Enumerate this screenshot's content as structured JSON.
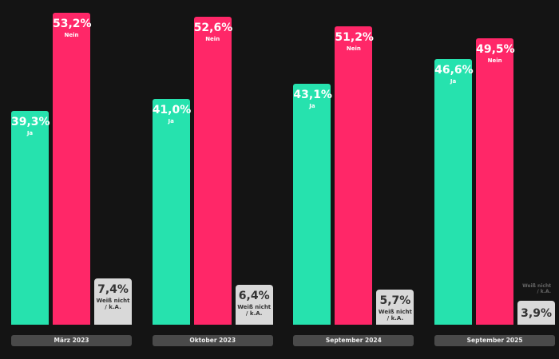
{
  "chart_data": {
    "type": "bar",
    "title": "",
    "categories": [
      "März 2023",
      "Oktober 2023",
      "September 2024",
      "September 2025"
    ],
    "series": [
      {
        "name": "Ja",
        "color": "#26e2ae",
        "values": [
          39.3,
          41.0,
          43.1,
          46.6
        ],
        "labels": [
          "39,3%",
          "41,0%",
          "43,1%",
          "46,6%"
        ]
      },
      {
        "name": "Nein",
        "color": "#ff2768",
        "values": [
          53.2,
          52.6,
          51.2,
          49.5
        ],
        "labels": [
          "53,2%",
          "52,6%",
          "51,2%",
          "49,5%"
        ]
      },
      {
        "name": "Weiß nicht / k.A.",
        "name_lines": [
          "Weiß nicht",
          "/ k.A."
        ],
        "color": "#d9d9d9",
        "values": [
          7.4,
          6.4,
          5.7,
          3.9
        ],
        "labels": [
          "7,4%",
          "6,4%",
          "5,7%",
          "3,9%"
        ]
      }
    ],
    "xlabel": "",
    "ylabel": "",
    "grid": false
  }
}
